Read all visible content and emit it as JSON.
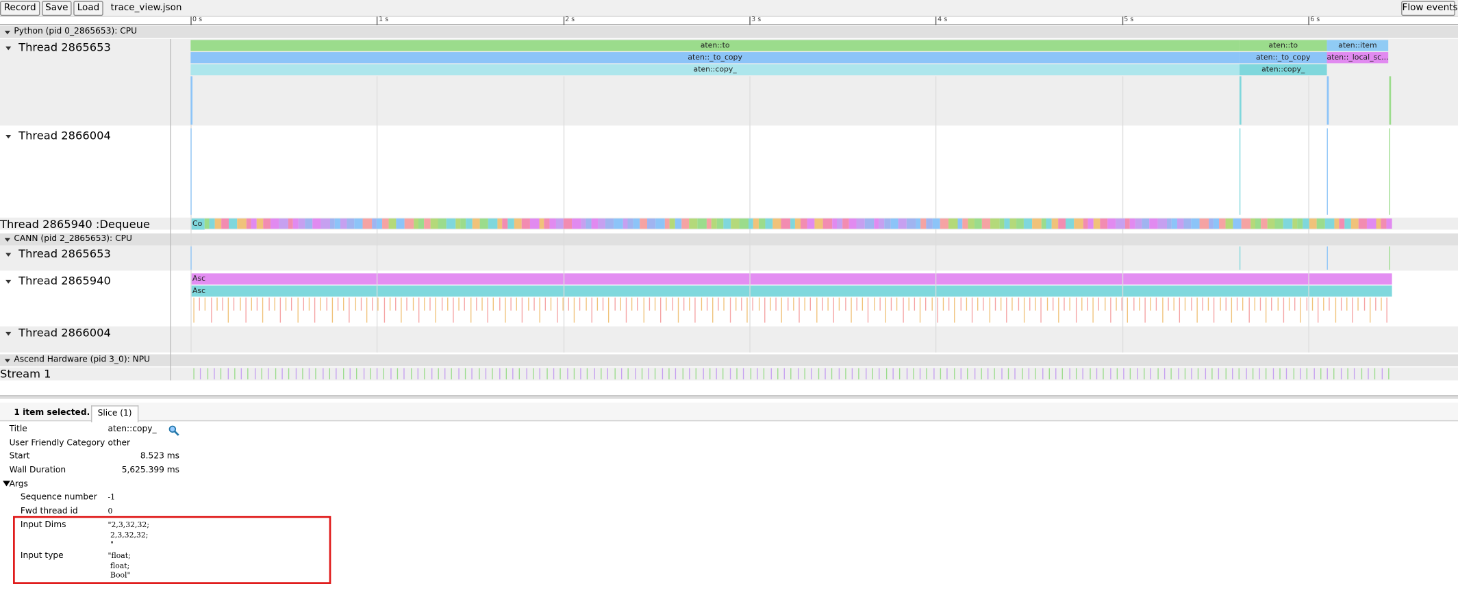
{
  "toolbar": {
    "buttons": [
      "Record",
      "Save",
      "Load"
    ],
    "filename": "trace_view.json",
    "flow_events": "Flow events"
  },
  "ruler": {
    "ticks": [
      "0 s",
      "1 s",
      "2 s",
      "3 s",
      "4 s",
      "5 s",
      "6 s"
    ]
  },
  "processes": [
    {
      "title": "Python (pid 0_2865653): CPU",
      "threads": [
        {
          "name": "Thread 2865653",
          "slices": [
            "aten::to",
            "aten::to",
            "aten::item",
            "aten::_to_copy",
            "aten::_to_copy",
            "aten::_local_sc...",
            "aten::copy_",
            "aten::copy_"
          ]
        },
        {
          "name": "Thread 2866004"
        },
        {
          "name": "Thread 2865940 :Dequeue",
          "slices": [
            "Co"
          ]
        }
      ]
    },
    {
      "title": "CANN (pid 2_2865653): CPU",
      "threads": [
        {
          "name": "Thread 2865653"
        },
        {
          "name": "Thread 2865940",
          "slices": [
            "Asc",
            "Asc"
          ]
        },
        {
          "name": "Thread 2866004"
        }
      ]
    },
    {
      "title": "Ascend Hardware (pid 3_0): NPU",
      "threads": [
        {
          "name": "Stream 1"
        }
      ]
    }
  ],
  "details": {
    "selection": "1 item selected.",
    "tab": "Slice (1)",
    "rows": [
      [
        "Title",
        "aten::copy_"
      ],
      [
        "User Friendly Category",
        "other"
      ],
      [
        "Start",
        "8.523 ms"
      ],
      [
        "Wall Duration",
        "5,625.399 ms"
      ]
    ],
    "args_label": "Args",
    "args": [
      [
        "Sequence number",
        "-1"
      ],
      [
        "Fwd thread id",
        "0"
      ],
      [
        "Input Dims",
        "\"2,3,32,32;\n 2,3,32,32;\n \""
      ],
      [
        "Input type",
        "\"float;\n float;\n Bool\""
      ]
    ]
  }
}
